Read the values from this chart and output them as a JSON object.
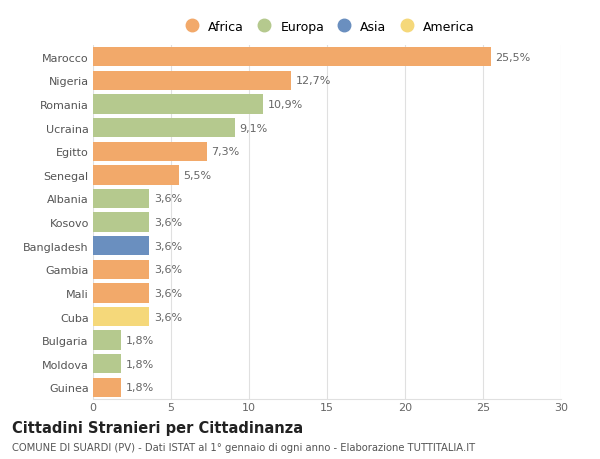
{
  "countries": [
    "Marocco",
    "Nigeria",
    "Romania",
    "Ucraina",
    "Egitto",
    "Senegal",
    "Albania",
    "Kosovo",
    "Bangladesh",
    "Gambia",
    "Mali",
    "Cuba",
    "Bulgaria",
    "Moldova",
    "Guinea"
  ],
  "values": [
    25.5,
    12.7,
    10.9,
    9.1,
    7.3,
    5.5,
    3.6,
    3.6,
    3.6,
    3.6,
    3.6,
    3.6,
    1.8,
    1.8,
    1.8
  ],
  "labels": [
    "25,5%",
    "12,7%",
    "10,9%",
    "9,1%",
    "7,3%",
    "5,5%",
    "3,6%",
    "3,6%",
    "3,6%",
    "3,6%",
    "3,6%",
    "3,6%",
    "1,8%",
    "1,8%",
    "1,8%"
  ],
  "continents": [
    "Africa",
    "Africa",
    "Europa",
    "Europa",
    "Africa",
    "Africa",
    "Europa",
    "Europa",
    "Asia",
    "Africa",
    "Africa",
    "America",
    "Europa",
    "Europa",
    "Africa"
  ],
  "colors": {
    "Africa": "#F2A96A",
    "Europa": "#B5C98E",
    "Asia": "#6A8FBF",
    "America": "#F5D87A"
  },
  "legend_order": [
    "Africa",
    "Europa",
    "Asia",
    "America"
  ],
  "title": "Cittadini Stranieri per Cittadinanza",
  "subtitle": "COMUNE DI SUARDI (PV) - Dati ISTAT al 1° gennaio di ogni anno - Elaborazione TUTTITALIA.IT",
  "xlim": [
    0,
    30
  ],
  "xticks": [
    0,
    5,
    10,
    15,
    20,
    25,
    30
  ],
  "bar_height": 0.82,
  "background_color": "#ffffff",
  "grid_color": "#e0e0e0",
  "label_fontsize": 8,
  "tick_fontsize": 8,
  "title_fontsize": 10.5,
  "subtitle_fontsize": 7.2
}
